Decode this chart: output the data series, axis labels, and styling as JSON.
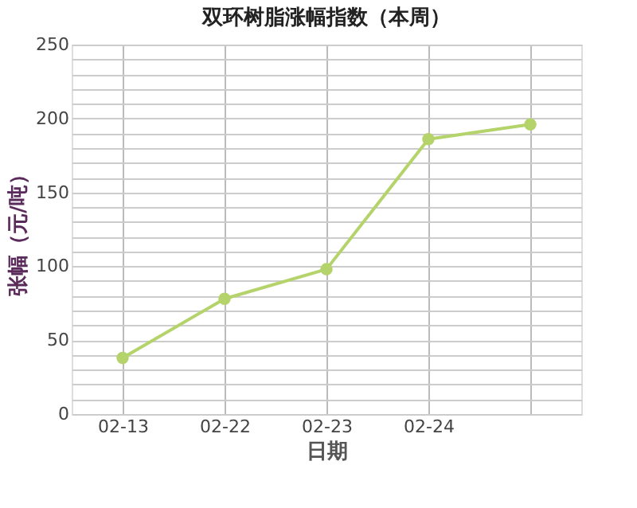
{
  "chart_data": {
    "type": "line",
    "title": "双环树脂涨幅指数（本周）",
    "xlabel": "日期",
    "ylabel": "张幅（元/吨）",
    "categories": [
      "02-13",
      "02-22",
      "02-23",
      "02-24",
      null
    ],
    "series": [
      {
        "color": "#b5d36b",
        "values": [
          38,
          78,
          98,
          186,
          196
        ]
      }
    ],
    "ylim": [
      0,
      250
    ],
    "yticks": [
      0,
      {
        "value": 10,
        "label": null
      },
      {
        "value": 20,
        "label": null
      },
      {
        "value": 30,
        "label": null
      },
      {
        "value": 40,
        "label": null
      },
      50,
      {
        "value": 60,
        "label": null
      },
      {
        "value": 70,
        "label": null
      },
      {
        "value": 80,
        "label": null
      },
      {
        "value": 90,
        "label": null
      },
      100,
      {
        "value": 110,
        "label": null
      },
      {
        "value": 120,
        "label": null
      },
      {
        "value": 130,
        "label": null
      },
      {
        "value": 140,
        "label": null
      },
      150,
      {
        "value": 160,
        "label": null
      },
      {
        "value": 170,
        "label": null
      },
      {
        "value": 180,
        "label": null
      },
      {
        "value": 190,
        "label": null
      },
      200,
      {
        "value": 210,
        "label": null
      },
      {
        "value": 220,
        "label": null
      },
      {
        "value": 230,
        "label": null
      },
      {
        "value": 240,
        "label": null
      },
      250
    ],
    "grid": true,
    "marker": "circle"
  }
}
